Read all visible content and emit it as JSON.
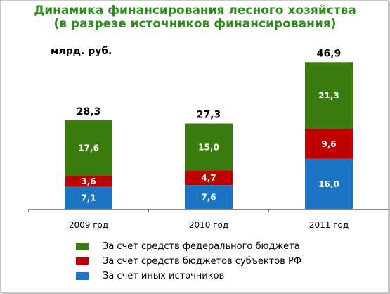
{
  "title_line1": "Динамика финансирования лесного хозяйства",
  "title_line2": "(в разрезе источников финансирования)",
  "unit_label": "млрд. руб.",
  "chart_data": {
    "type": "bar",
    "stacked": true,
    "categories": [
      "2009 год",
      "2010 год",
      "2011 год"
    ],
    "totals": [
      "28,3",
      "27,3",
      "46,9"
    ],
    "total_values": [
      28.3,
      27.3,
      46.9
    ],
    "series": [
      {
        "name": "За счет иных источников",
        "color": "#1b74c4",
        "values": [
          7.1,
          7.6,
          16.0
        ],
        "labels": [
          "7,1",
          "7,6",
          "16,0"
        ]
      },
      {
        "name": "За счет средств бюджетов субъектов РФ",
        "color": "#c00000",
        "values": [
          3.6,
          4.7,
          9.6
        ],
        "labels": [
          "3,6",
          "4,7",
          "9,6"
        ]
      },
      {
        "name": "За счет средств федерального бюджета",
        "color": "#3a7d0e",
        "values": [
          17.6,
          15.0,
          21.3
        ],
        "labels": [
          "17,6",
          "15,0",
          "21,3"
        ]
      }
    ],
    "legend_order": [
      2,
      1,
      0
    ],
    "legend_position": "bottom",
    "grid": false
  }
}
